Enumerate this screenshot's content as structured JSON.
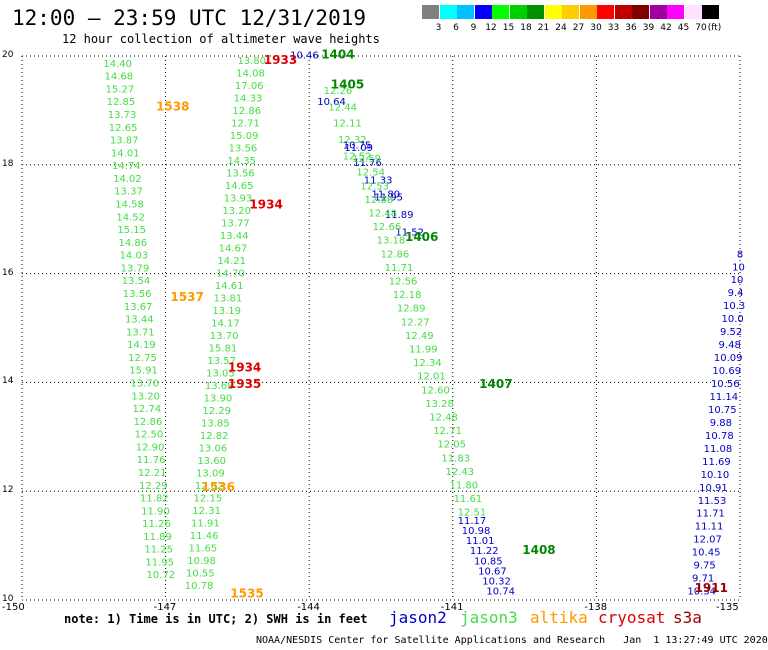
{
  "title": "12:00 — 23:59 UTC 12/31/2019",
  "subtitle": "12 hour collection of altimeter wave heights",
  "legend": {
    "unit": "(ft)",
    "swatches": [
      {
        "color": "#808080",
        "label": "3"
      },
      {
        "color": "#00ffff",
        "label": "6"
      },
      {
        "color": "#00c0ff",
        "label": "9"
      },
      {
        "color": "#0000ff",
        "label": "12"
      },
      {
        "color": "#00ff00",
        "label": "15"
      },
      {
        "color": "#00d000",
        "label": "18"
      },
      {
        "color": "#009000",
        "label": "21"
      },
      {
        "color": "#ffff00",
        "label": "24"
      },
      {
        "color": "#ffcc00",
        "label": "27"
      },
      {
        "color": "#ff9900",
        "label": "30"
      },
      {
        "color": "#ff0000",
        "label": "33"
      },
      {
        "color": "#c00000",
        "label": "36"
      },
      {
        "color": "#800000",
        "label": "39"
      },
      {
        "color": "#a000a0",
        "label": "42"
      },
      {
        "color": "#ff00ff",
        "label": "45"
      },
      {
        "color": "#ffe0ff",
        "label": "70"
      },
      {
        "color": "#000000",
        "label": ""
      }
    ]
  },
  "axes": {
    "lat": {
      "min": 10,
      "max": 20,
      "ticks": [
        "10",
        "12",
        "14",
        "16",
        "18",
        "20"
      ]
    },
    "lon": {
      "min": -150,
      "max": -135,
      "ticks": [
        "-150",
        "-147",
        "-144",
        "-141",
        "-138",
        "-135"
      ]
    }
  },
  "satellite_colors": {
    "jason2": "#0000c8",
    "jason3": "#44dd44",
    "altika": "#ff9900",
    "cryosat": "#dd0000",
    "s3a": "#990000"
  },
  "tracks": [
    {
      "sat": "jason3",
      "lon0": -148.0,
      "lat0": 19.8,
      "lon1": -147.1,
      "lat1": 10.4,
      "values": [
        "14.40",
        "14.68",
        "15.27",
        "12.85",
        "13.73",
        "12.65",
        "13.87",
        "14.01",
        "14.74",
        "14.02",
        "13.37",
        "14.58",
        "14.52",
        "15.15",
        "14.86",
        "14.03",
        "13.79",
        "13.54",
        "13.56",
        "13.67",
        "13.44",
        "13.71",
        "14.19",
        "12.75",
        "15.91",
        "13.70",
        "13.20",
        "12.74",
        "12.86",
        "12.50",
        "12.90",
        "11.76",
        "12.21",
        "12.29",
        "11.82",
        "11.90",
        "11.26",
        "11.89",
        "11.25",
        "11.95",
        "10.72"
      ]
    },
    {
      "sat": "jason3",
      "lon0": -145.2,
      "lat0": 19.85,
      "lon1": -146.3,
      "lat1": 10.2,
      "values": [
        "13.80",
        "14.08",
        "17.06",
        "14.33",
        "12.86",
        "12.71",
        "15.09",
        "13.56",
        "14.35",
        "13.56",
        "14.65",
        "13.93",
        "13.20",
        "13.77",
        "13.44",
        "14.67",
        "14.21",
        "14.70",
        "14.61",
        "13.81",
        "13.19",
        "14.17",
        "13.70",
        "15.81",
        "13.57",
        "13.05",
        "13.68",
        "13.90",
        "12.29",
        "13.85",
        "12.82",
        "13.06",
        "13.60",
        "13.09",
        "12.82",
        "12.15",
        "12.31",
        "11.91",
        "11.46",
        "11.65",
        "10.98",
        "10.55",
        "10.78"
      ]
    },
    {
      "sat": "jason2",
      "lon0": -144.1,
      "lat0": 19.95,
      "lon1": -142.4,
      "lat1": 17.4,
      "values": [
        "10.46",
        "10.64",
        "11.09",
        "11.80"
      ]
    },
    {
      "sat": "jason3",
      "lon0": -143.4,
      "lat0": 19.3,
      "lon1": -143.0,
      "lat1": 18.1,
      "values": [
        "12.26",
        "12.44",
        "12.11",
        "12.32",
        "12.52"
      ]
    },
    {
      "sat": "jason2",
      "lon0": -143.0,
      "lat0": 18.3,
      "lon1": -141.9,
      "lat1": 16.7,
      "values": [
        "10.75",
        "11.76",
        "11.33",
        "11.95",
        "11.89",
        "11.52"
      ]
    },
    {
      "sat": "jason3",
      "lon0": -142.8,
      "lat0": 18.05,
      "lon1": -140.6,
      "lat1": 11.55,
      "values": [
        "12.59",
        "12.54",
        "12.53",
        "12.88",
        "12.48",
        "12.66",
        "13.18",
        "12.86",
        "11.71",
        "12.56",
        "12.18",
        "12.89",
        "12.27",
        "12.49",
        "11.99",
        "12.34",
        "12.01",
        "12.60",
        "13.28",
        "12.48",
        "12.71",
        "12.05",
        "11.83",
        "12.43",
        "11.80",
        "11.61",
        "12.51"
      ]
    },
    {
      "sat": "jason2",
      "lon0": -140.6,
      "lat0": 11.4,
      "lon1": -140.0,
      "lat1": 10.1,
      "values": [
        "11.17",
        "10.98",
        "11.01",
        "11.22",
        "10.85",
        "10.67",
        "10.32",
        "10.74"
      ]
    },
    {
      "sat": "jason2",
      "lon0": -135.0,
      "lat0": 16.3,
      "lon1": -135.8,
      "lat1": 10.1,
      "values": [
        "8",
        "10",
        "10",
        "9.4",
        "10.3",
        "10.0",
        "9.52",
        "9.48",
        "10.09",
        "10.69",
        "10.56",
        "11.14",
        "10.75",
        "9.88",
        "10.78",
        "11.08",
        "11.69",
        "10.10",
        "10.91",
        "11.53",
        "11.71",
        "11.11",
        "12.07",
        "10.45",
        "9.75",
        "9.71",
        "10.34"
      ]
    }
  ],
  "time_labels": [
    {
      "sat": "altika",
      "text": "1538",
      "lon": -146.85,
      "lat": 19.0
    },
    {
      "sat": "cryosat",
      "text": "1933",
      "lon": -144.6,
      "lat": 19.85
    },
    {
      "sat": "jason3_dark",
      "text": "1404",
      "lon": -143.4,
      "lat": 19.95
    },
    {
      "sat": "jason3_dark",
      "text": "1405",
      "lon": -143.2,
      "lat": 19.4
    },
    {
      "sat": "cryosat",
      "text": "1934",
      "lon": -144.9,
      "lat": 17.2
    },
    {
      "sat": "jason3_dark",
      "text": "1406",
      "lon": -141.65,
      "lat": 16.6
    },
    {
      "sat": "altika",
      "text": "1537",
      "lon": -146.55,
      "lat": 15.5
    },
    {
      "sat": "cryosat",
      "text": "1934",
      "lon": -145.35,
      "lat": 14.2
    },
    {
      "sat": "cryosat",
      "text": "1935",
      "lon": -145.35,
      "lat": 13.9
    },
    {
      "sat": "jason3_dark",
      "text": "1407",
      "lon": -140.1,
      "lat": 13.9
    },
    {
      "sat": "altika",
      "text": "1536",
      "lon": -145.9,
      "lat": 12.0
    },
    {
      "sat": "jason3_dark",
      "text": "1408",
      "lon": -139.2,
      "lat": 10.85
    },
    {
      "sat": "altika",
      "text": "1535",
      "lon": -145.3,
      "lat": 10.05
    },
    {
      "sat": "s3a",
      "text": "1911",
      "lon": -135.6,
      "lat": 10.15
    }
  ],
  "footer": {
    "note": "note: 1) Time is in UTC; 2) SWH is in feet",
    "sat_names": [
      {
        "key": "jason2",
        "label": "jason2"
      },
      {
        "key": "jason3",
        "label": "jason3"
      },
      {
        "key": "altika",
        "label": "altika"
      },
      {
        "key": "cryosat",
        "label": "cryosat"
      },
      {
        "key": "s3a",
        "label": "s3a"
      }
    ],
    "credit": "NOAA/NESDIS Center for Satellite Applications and Research   Jan  1 13:27:49 UTC 2020"
  }
}
